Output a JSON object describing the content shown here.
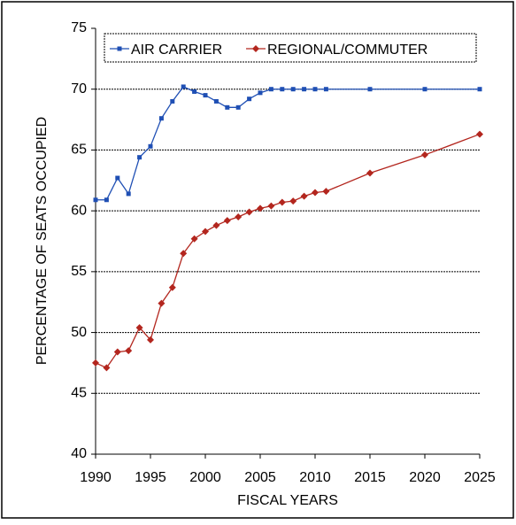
{
  "chart_data": {
    "type": "line",
    "x_label": "FISCAL YEARS",
    "y_label": "PERCENTAGE OF SEATS OCCUPIED",
    "x": [
      1990,
      1991,
      1992,
      1993,
      1994,
      1995,
      1996,
      1997,
      1998,
      1999,
      2000,
      2001,
      2002,
      2003,
      2004,
      2005,
      2006,
      2007,
      2008,
      2009,
      2010,
      2011,
      2015,
      2020,
      2025
    ],
    "series": [
      {
        "name": "AIR CARRIER",
        "color": "#1f4fb4",
        "marker": "square",
        "values": [
          60.9,
          60.9,
          62.7,
          61.4,
          64.4,
          65.3,
          67.6,
          69.0,
          70.2,
          69.8,
          69.5,
          69.0,
          68.5,
          68.5,
          69.2,
          69.7,
          70.0,
          70.0,
          70.0,
          70.0,
          70.0,
          70.0,
          70.0,
          70.0,
          70.0
        ]
      },
      {
        "name": "REGIONAL/COMMUTER",
        "color": "#b3261e",
        "marker": "diamond",
        "values": [
          47.5,
          47.1,
          48.4,
          48.5,
          50.4,
          49.4,
          52.4,
          53.7,
          56.5,
          57.7,
          58.3,
          58.8,
          59.2,
          59.5,
          59.9,
          60.2,
          60.4,
          60.7,
          60.8,
          61.2,
          61.5,
          61.6,
          63.1,
          64.6,
          66.3
        ]
      }
    ],
    "xlim": [
      1990,
      2025
    ],
    "xticks": [
      1990,
      1995,
      2000,
      2005,
      2010,
      2015,
      2020,
      2025
    ],
    "ylim": [
      40,
      75
    ],
    "yticks": [
      40,
      45,
      50,
      55,
      60,
      65,
      70,
      75
    ],
    "grid": true,
    "legend": "top"
  }
}
